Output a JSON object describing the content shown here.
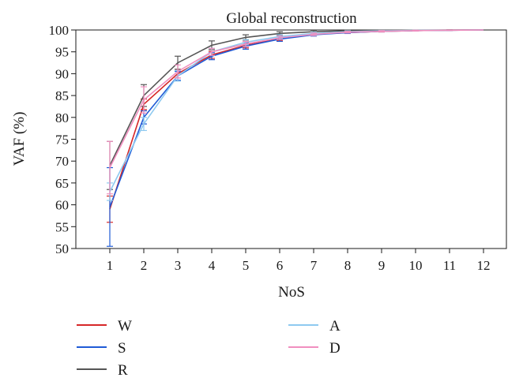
{
  "chart_data": {
    "type": "line",
    "title": "Global reconstruction",
    "xlabel": "NoS",
    "ylabel": "VAF (%)",
    "x": [
      1,
      2,
      3,
      4,
      5,
      6,
      7,
      8,
      9,
      10,
      11,
      12
    ],
    "ylim": [
      50,
      100
    ],
    "yticks": [
      50,
      55,
      60,
      65,
      70,
      75,
      80,
      85,
      90,
      95,
      100
    ],
    "grid": false,
    "legend_position": "bottom",
    "series": [
      {
        "name": "W",
        "color": "#d62728",
        "values": [
          59.0,
          83.0,
          90.0,
          94.3,
          96.5,
          98.0,
          99.0,
          99.4,
          99.7,
          99.85,
          99.95,
          100
        ],
        "errors": [
          3.0,
          1.2,
          1.0,
          0.8,
          0.6,
          0.4,
          0.3,
          0.2,
          0.15,
          0.1,
          0.05,
          0
        ]
      },
      {
        "name": "S",
        "color": "#1f5bd6",
        "values": [
          59.5,
          80.0,
          89.5,
          94.0,
          96.3,
          97.9,
          98.9,
          99.4,
          99.7,
          99.85,
          99.95,
          100
        ],
        "errors": [
          9.0,
          1.5,
          1.0,
          0.8,
          0.7,
          0.5,
          0.3,
          0.2,
          0.15,
          0.1,
          0.05,
          0
        ]
      },
      {
        "name": "R",
        "color": "#555555",
        "values": [
          69.0,
          85.0,
          92.5,
          96.5,
          98.3,
          99.2,
          99.6,
          99.8,
          99.9,
          99.95,
          99.98,
          100
        ],
        "errors": [
          5.5,
          2.5,
          1.5,
          1.0,
          0.6,
          0.4,
          0.3,
          0.2,
          0.1,
          0.05,
          0.02,
          0
        ]
      },
      {
        "name": "A",
        "color": "#8ec9f0",
        "values": [
          63.0,
          78.5,
          89.5,
          95.0,
          97.2,
          98.5,
          99.2,
          99.6,
          99.8,
          99.9,
          99.95,
          100
        ],
        "errors": [
          2.0,
          1.5,
          1.2,
          0.8,
          0.6,
          0.4,
          0.3,
          0.2,
          0.1,
          0.05,
          0.02,
          0
        ]
      },
      {
        "name": "D",
        "color": "#f08fbf",
        "values": [
          68.5,
          84.0,
          90.5,
          95.0,
          96.8,
          98.2,
          99.0,
          99.5,
          99.7,
          99.85,
          99.95,
          100
        ],
        "errors": [
          6.0,
          3.0,
          1.5,
          0.8,
          0.6,
          0.4,
          0.3,
          0.2,
          0.15,
          0.1,
          0.05,
          0
        ]
      }
    ]
  }
}
